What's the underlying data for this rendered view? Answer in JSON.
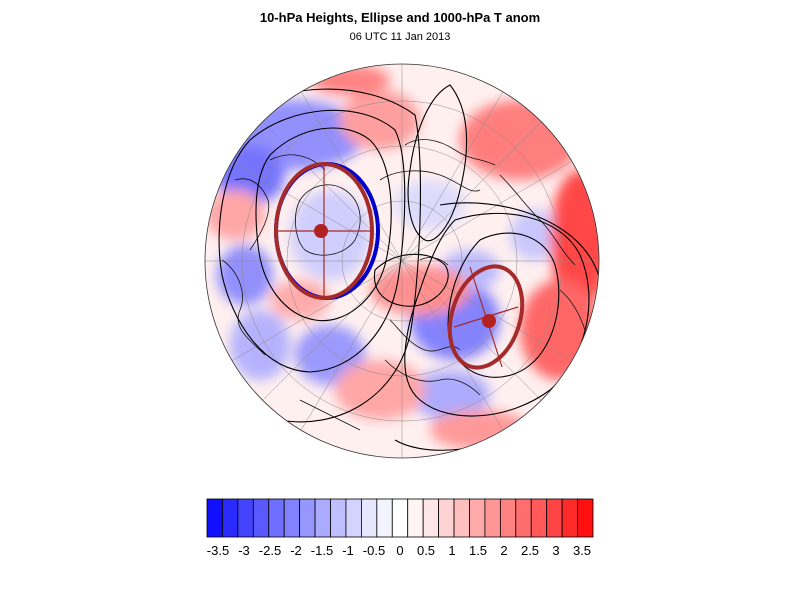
{
  "header": {
    "title": "10-hPa Heights, Ellipse and 1000-hPa T anom",
    "subtitle": "06 UTC 11 Jan 2013"
  },
  "map": {
    "projection": "orthographic-polar",
    "field": "1000-hPa T anom",
    "contour_color": "#000000",
    "ellipse_color": "#a52a2a",
    "ellipse_inner_color": "#0000cc"
  },
  "colorbar": {
    "labels": [
      "-3.5",
      "-3",
      "-2.5",
      "-2",
      "-1.5",
      "-1",
      "-0.5",
      "0",
      "0.5",
      "1",
      "1.5",
      "2",
      "2.5",
      "3",
      "3.5"
    ],
    "colors": [
      "#1010ff",
      "#2a2aff",
      "#4444ff",
      "#5959ff",
      "#6e6eff",
      "#8282ff",
      "#9696ff",
      "#aaaaff",
      "#bfbfff",
      "#d3d3ff",
      "#e6e6ff",
      "#f4f4ff",
      "#ffffff",
      "#fff4f4",
      "#ffe6e6",
      "#ffd3d3",
      "#ffbfbf",
      "#ffaaaa",
      "#ff9696",
      "#ff8282",
      "#ff6e6e",
      "#ff5959",
      "#ff4444",
      "#ff2a2a",
      "#ff1010"
    ]
  }
}
